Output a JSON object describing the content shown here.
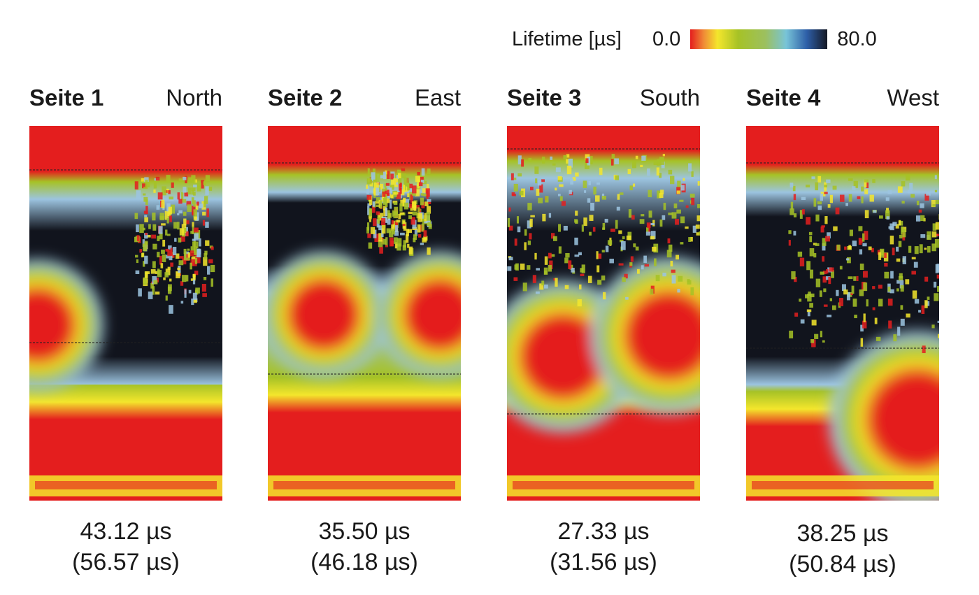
{
  "legend": {
    "label": "Lifetime [µs]",
    "min_label": "0.0",
    "max_label": "80.0"
  },
  "chart_data": {
    "type": "heatmap",
    "title": "",
    "colorbar": {
      "label": "Lifetime [µs]",
      "range": [
        0.0,
        80.0
      ],
      "colors": [
        "#e41e1e",
        "#f4e62c",
        "#a6c226",
        "#78c4d8",
        "#2e5fa8",
        "#141824"
      ]
    },
    "panels": [
      {
        "side": "Seite 1",
        "direction": "North",
        "value": "43.12 µs",
        "value2": "(56.57 µs)"
      },
      {
        "side": "Seite 2",
        "direction": "East",
        "value": "35.50 µs",
        "value2": "(46.18 µs)"
      },
      {
        "side": "Seite 3",
        "direction": "South",
        "value": "27.33 µs",
        "value2": "(31.56 µs)"
      },
      {
        "side": "Seite 4",
        "direction": "West",
        "value": "38.25 µs",
        "value2": "(50.84 µs)"
      }
    ]
  }
}
